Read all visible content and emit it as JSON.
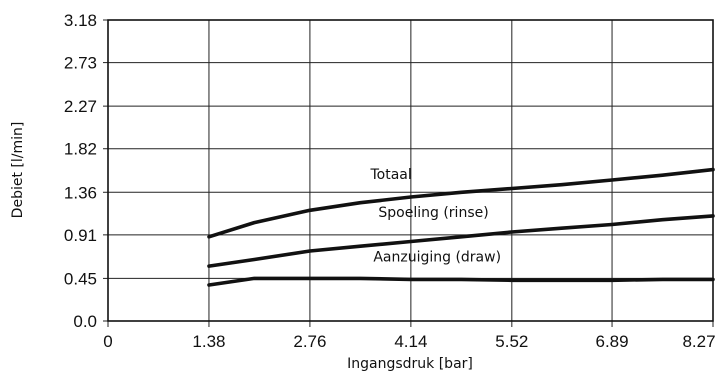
{
  "chart_data": {
    "type": "line",
    "xlabel": "Ingangsdruk [bar]",
    "ylabel": "Debiet [l/min]",
    "xlim": [
      0,
      8.27
    ],
    "ylim": [
      0,
      3.18
    ],
    "x_ticks": [
      "0",
      "1.38",
      "2.76",
      "4.14",
      "5.52",
      "6.89",
      "8.27"
    ],
    "y_ticks": [
      "0.0",
      "0.45",
      "0.91",
      "1.36",
      "1.82",
      "2.27",
      "2.73",
      "3.18"
    ],
    "grid": true,
    "series": [
      {
        "name": "Totaal",
        "x": [
          1.38,
          2.0,
          2.76,
          3.45,
          4.14,
          4.83,
          5.52,
          6.2,
          6.89,
          7.58,
          8.27
        ],
        "y": [
          0.89,
          1.04,
          1.17,
          1.25,
          1.31,
          1.36,
          1.4,
          1.44,
          1.49,
          1.54,
          1.6
        ]
      },
      {
        "name": "Spoeling (rinse)",
        "x": [
          1.38,
          2.0,
          2.76,
          3.45,
          4.14,
          4.83,
          5.52,
          6.2,
          6.89,
          7.58,
          8.27
        ],
        "y": [
          0.58,
          0.65,
          0.74,
          0.79,
          0.84,
          0.89,
          0.94,
          0.98,
          1.02,
          1.07,
          1.11
        ]
      },
      {
        "name": "Aanzuiging (draw)",
        "x": [
          1.38,
          2.0,
          2.76,
          3.45,
          4.14,
          4.83,
          5.52,
          6.2,
          6.89,
          7.58,
          8.27
        ],
        "y": [
          0.38,
          0.45,
          0.45,
          0.45,
          0.44,
          0.44,
          0.43,
          0.43,
          0.43,
          0.44,
          0.44
        ]
      }
    ]
  }
}
